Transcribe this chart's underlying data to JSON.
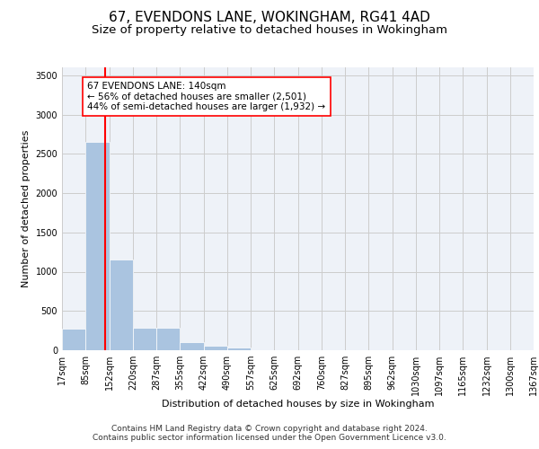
{
  "title_line1": "67, EVENDONS LANE, WOKINGHAM, RG41 4AD",
  "title_line2": "Size of property relative to detached houses in Wokingham",
  "xlabel": "Distribution of detached houses by size in Wokingham",
  "ylabel": "Number of detached properties",
  "bin_labels": [
    "17sqm",
    "85sqm",
    "152sqm",
    "220sqm",
    "287sqm",
    "355sqm",
    "422sqm",
    "490sqm",
    "557sqm",
    "625sqm",
    "692sqm",
    "760sqm",
    "827sqm",
    "895sqm",
    "962sqm",
    "1030sqm",
    "1097sqm",
    "1165sqm",
    "1232sqm",
    "1300sqm",
    "1367sqm"
  ],
  "bin_edges": [
    17,
    85,
    152,
    220,
    287,
    355,
    422,
    490,
    557,
    625,
    692,
    760,
    827,
    895,
    962,
    1030,
    1097,
    1165,
    1232,
    1300,
    1367
  ],
  "bar_heights": [
    270,
    2650,
    1150,
    290,
    290,
    100,
    60,
    40,
    5,
    3,
    2,
    1,
    1,
    0,
    0,
    0,
    0,
    0,
    0,
    0
  ],
  "bar_color": "#aac4e0",
  "grid_color": "#cccccc",
  "background_color": "#eef2f8",
  "property_size": 140,
  "property_line_color": "red",
  "annotation_text": "67 EVENDONS LANE: 140sqm\n← 56% of detached houses are smaller (2,501)\n44% of semi-detached houses are larger (1,932) →",
  "annotation_box_color": "white",
  "annotation_box_edge": "red",
  "ylim": [
    0,
    3600
  ],
  "yticks": [
    0,
    500,
    1000,
    1500,
    2000,
    2500,
    3000,
    3500
  ],
  "footer_line1": "Contains HM Land Registry data © Crown copyright and database right 2024.",
  "footer_line2": "Contains public sector information licensed under the Open Government Licence v3.0.",
  "title_fontsize": 11,
  "subtitle_fontsize": 9.5,
  "axis_label_fontsize": 8,
  "tick_fontsize": 7,
  "annotation_fontsize": 7.5,
  "footer_fontsize": 6.5
}
